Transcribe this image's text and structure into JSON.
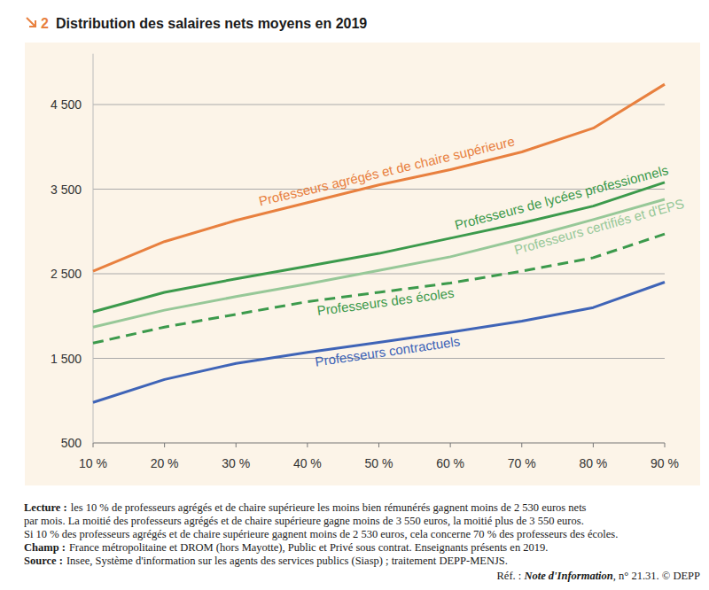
{
  "chart_data": {
    "type": "line",
    "figure_number": "2",
    "title": "Distribution des salaires nets moyens en 2019",
    "categories": [
      "10 %",
      "20 %",
      "30 %",
      "40 %",
      "50 %",
      "60 %",
      "70 %",
      "80 %",
      "90 %"
    ],
    "series": [
      {
        "name": "Professeurs agrégés et de chaire supérieure",
        "color": "#e8803f",
        "line_style": "solid",
        "values": [
          2530,
          2880,
          3130,
          3340,
          3550,
          3730,
          3940,
          4220,
          4740
        ]
      },
      {
        "name": "Professeurs de lycées professionnels",
        "color": "#3c9a4c",
        "line_style": "solid",
        "values": [
          2050,
          2280,
          2440,
          2590,
          2740,
          2920,
          3100,
          3300,
          3580
        ]
      },
      {
        "name": "Professeurs certifiés et d'EPS",
        "color": "#97c898",
        "line_style": "solid",
        "values": [
          1870,
          2070,
          2230,
          2380,
          2540,
          2700,
          2910,
          3140,
          3380
        ]
      },
      {
        "name": "Professeurs des écoles",
        "color": "#3c9a4c",
        "line_style": "dashed",
        "values": [
          1680,
          1870,
          2020,
          2170,
          2280,
          2390,
          2530,
          2690,
          2970
        ]
      },
      {
        "name": "Professeurs contractuels",
        "color": "#3f64b7",
        "line_style": "solid",
        "values": [
          980,
          1250,
          1440,
          1570,
          1690,
          1810,
          1940,
          2100,
          2400
        ]
      }
    ],
    "ylim": [
      500,
      5100
    ],
    "yticks": [
      500,
      {
        "value": 1500,
        "label": "1 500"
      },
      {
        "value": 2500,
        "label": "2 500"
      },
      {
        "value": 3500,
        "label": "3 500"
      },
      {
        "value": 4500,
        "label": "4 500"
      }
    ],
    "grid": true,
    "notes": [
      {
        "label": "Lecture :",
        "lines": [
          "les 10 % de professeurs agrégés et de chaire supérieure les moins bien rémunérés gagnent moins de 2 530 euros nets",
          "par mois. La moitié des professeurs agrégés et de chaire supérieure gagne moins de 3 550 euros, la moitié plus de 3 550 euros.",
          "Si 10 % des professeurs agrégés et de chaire supérieure gagnent moins de 2 530 euros, cela concerne 70 % des professeurs des écoles."
        ]
      },
      {
        "label": "Champ :",
        "lines": [
          "France métropolitaine et DROM (hors Mayotte), Public et Privé sous contrat. Enseignants présents en 2019."
        ]
      },
      {
        "label": "Source :",
        "lines": [
          "Insee, Système d'information sur les agents des services publics (Siasp) ; traitement DEPP-MENJS."
        ]
      }
    ],
    "reference": {
      "prefix": "Réf. : ",
      "italic": "Note d'Information",
      "suffix": ", n° 21.31. © DEPP"
    }
  }
}
